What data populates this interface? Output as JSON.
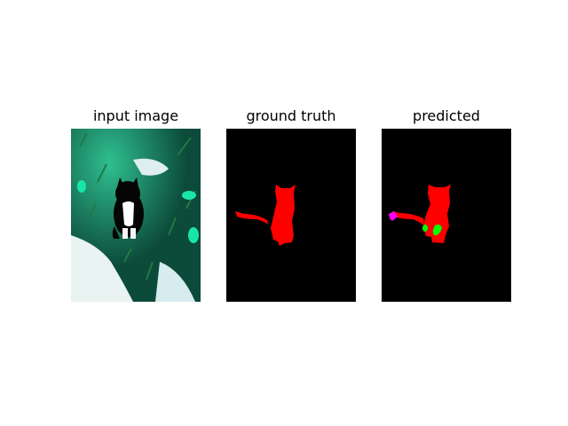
{
  "figure": {
    "panels": [
      {
        "title": "input image",
        "content": "photo-cat-on-grass"
      },
      {
        "title": "ground truth",
        "content": "segmentation-mask"
      },
      {
        "title": "predicted",
        "content": "segmentation-mask"
      }
    ],
    "colors": {
      "background": "#000000",
      "cat_class": "#ff0000",
      "extra_class_green": "#00ff00",
      "extra_class_magenta": "#ff00ff"
    }
  }
}
